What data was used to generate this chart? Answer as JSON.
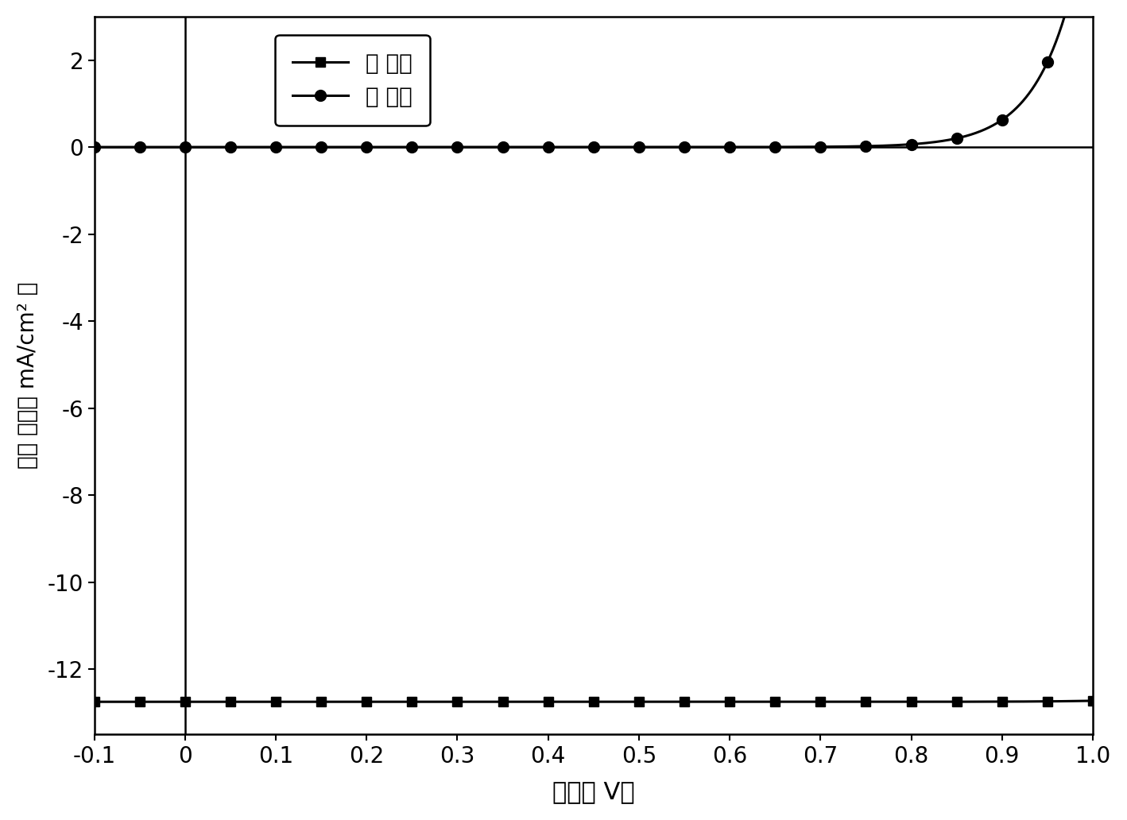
{
  "title": "",
  "xlabel": "电压（ V）",
  "ylabel": "电流 密度（ mA/cm² ）",
  "xlim": [
    -0.1,
    1.0
  ],
  "ylim": [
    -13.5,
    3.0
  ],
  "xticks": [
    -0.1,
    0.0,
    0.1,
    0.2,
    0.3,
    0.4,
    0.5,
    0.6,
    0.7,
    0.8,
    0.9,
    1.0
  ],
  "yticks": [
    -12,
    -10,
    -8,
    -6,
    -4,
    -2,
    0,
    2
  ],
  "legend_labels": [
    "光 电流",
    "暗 电流"
  ],
  "light_color": "#000000",
  "dark_color": "#000000",
  "background_color": "#ffffff",
  "linewidth": 2.2,
  "marker_size_square": 8,
  "marker_size_circle": 10,
  "xlabel_fontsize": 22,
  "ylabel_fontsize": 20,
  "tick_fontsize": 20,
  "legend_fontsize": 20,
  "Jsc": -12.75,
  "Voc": 0.885,
  "J0_light": 2.5e-10,
  "n_light": 2.2,
  "Rs_light": 3.5,
  "J0_dark": 8e-10,
  "n_dark": 1.7
}
